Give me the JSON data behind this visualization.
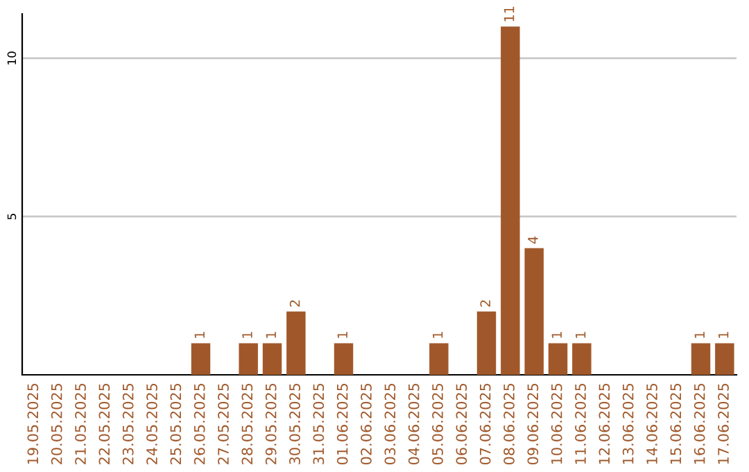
{
  "chart_data": {
    "type": "bar",
    "categories": [
      "19.05.2025",
      "20.05.2025",
      "21.05.2025",
      "22.05.2025",
      "23.05.2025",
      "24.05.2025",
      "25.05.2025",
      "26.05.2025",
      "27.05.2025",
      "28.05.2025",
      "29.05.2025",
      "30.05.2025",
      "31.05.2025",
      "01.06.2025",
      "02.06.2025",
      "03.06.2025",
      "04.06.2025",
      "05.06.2025",
      "06.06.2025",
      "07.06.2025",
      "08.06.2025",
      "09.06.2025",
      "10.06.2025",
      "11.06.2025",
      "12.06.2025",
      "13.06.2025",
      "14.06.2025",
      "15.06.2025",
      "16.06.2025",
      "17.06.2025"
    ],
    "values": [
      0,
      0,
      0,
      0,
      0,
      0,
      0,
      1,
      0,
      1,
      1,
      2,
      0,
      1,
      0,
      0,
      0,
      1,
      0,
      2,
      11,
      4,
      1,
      1,
      0,
      0,
      0,
      0,
      1,
      1
    ],
    "value_labels": [
      null,
      null,
      null,
      null,
      null,
      null,
      null,
      "1",
      null,
      "1",
      "1",
      "2",
      null,
      "1",
      null,
      null,
      null,
      "1",
      null,
      "2",
      "11",
      "4",
      "1",
      "1",
      null,
      null,
      null,
      null,
      "1",
      "1"
    ],
    "color": "#a0582a",
    "ylim": [
      0,
      11.4
    ],
    "yticks": [
      5,
      10
    ],
    "grid": "y",
    "legend": false
  }
}
